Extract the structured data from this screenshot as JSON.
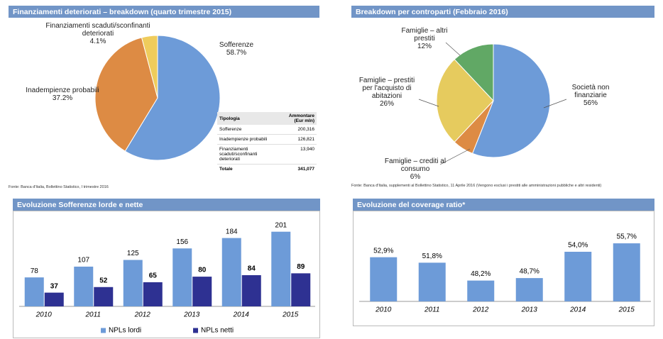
{
  "chart_data": [
    {
      "type": "pie",
      "title": "Finanziamenti deteriorati – breakdown (quarto trimestre 2015)",
      "categories": [
        "Sofferenze",
        "Inadempienze probabili",
        "Finanziamenti scaduti/sconfinanti deteriorati"
      ],
      "values": [
        58.7,
        37.2,
        4.1
      ],
      "value_labels": [
        "58.7%",
        "37.2%",
        "4.1%"
      ],
      "colors": [
        "#6d9bd8",
        "#dd8b44",
        "#efcc5c"
      ],
      "source": "Fonte: Banca d'Italia, Bollettino Statistico, I trimestre 2016"
    },
    {
      "type": "pie",
      "title": "Breakdown per controparti (Febbraio 2016)",
      "categories": [
        "Società non finanziarie",
        "Famiglie – crediti al consumo",
        "Famiglie – prestiti per l'acquisto di abitazioni",
        "Famiglie – altri prestiti"
      ],
      "values": [
        56,
        6,
        26,
        12
      ],
      "value_labels": [
        "56%",
        "6%",
        "26%",
        "12%"
      ],
      "colors": [
        "#6d9bd8",
        "#dd8b44",
        "#e6cb5e",
        "#61a865"
      ],
      "source": "Fonte: Banca d'Italia, supplementi al Bollettino Statistico, 11 Aprile 2016 (Vengono esclusi i prestiti alle amministrazioni pubbliche e altri residenti)"
    },
    {
      "type": "bar",
      "title": "Evoluzione Sofferenze lorde e nette",
      "categories": [
        "2010",
        "2011",
        "2012",
        "2013",
        "2014",
        "2015"
      ],
      "series": [
        {
          "name": "NPLs lordi",
          "color": "#6d9bd8",
          "values": [
            78,
            107,
            125,
            156,
            184,
            201
          ]
        },
        {
          "name": "NPLs netti",
          "color": "#2e3192",
          "values": [
            37,
            52,
            65,
            80,
            84,
            89
          ]
        }
      ],
      "ylim": [
        0,
        210
      ]
    },
    {
      "type": "bar",
      "title": "Evoluzione del coverage ratio*",
      "categories": [
        "2010",
        "2011",
        "2012",
        "2013",
        "2014",
        "2015"
      ],
      "values": [
        52.9,
        51.8,
        48.2,
        48.7,
        54.0,
        55.7
      ],
      "value_labels": [
        "52,9%",
        "51,8%",
        "48,2%",
        "48,7%",
        "54,0%",
        "55,7%"
      ],
      "color": "#6d9bd8",
      "ylim": [
        44,
        57
      ]
    }
  ],
  "table": {
    "header": [
      "Tipologia",
      "Ammontare (Eur mln)"
    ],
    "rows": [
      [
        "Sofferenze",
        "200,316"
      ],
      [
        "Inadempienze probabili",
        "126,821"
      ],
      [
        "Finanziamenti scaduti/sconfinanti deteriorati",
        "13,940"
      ],
      [
        "Totale",
        "341,077"
      ]
    ]
  }
}
